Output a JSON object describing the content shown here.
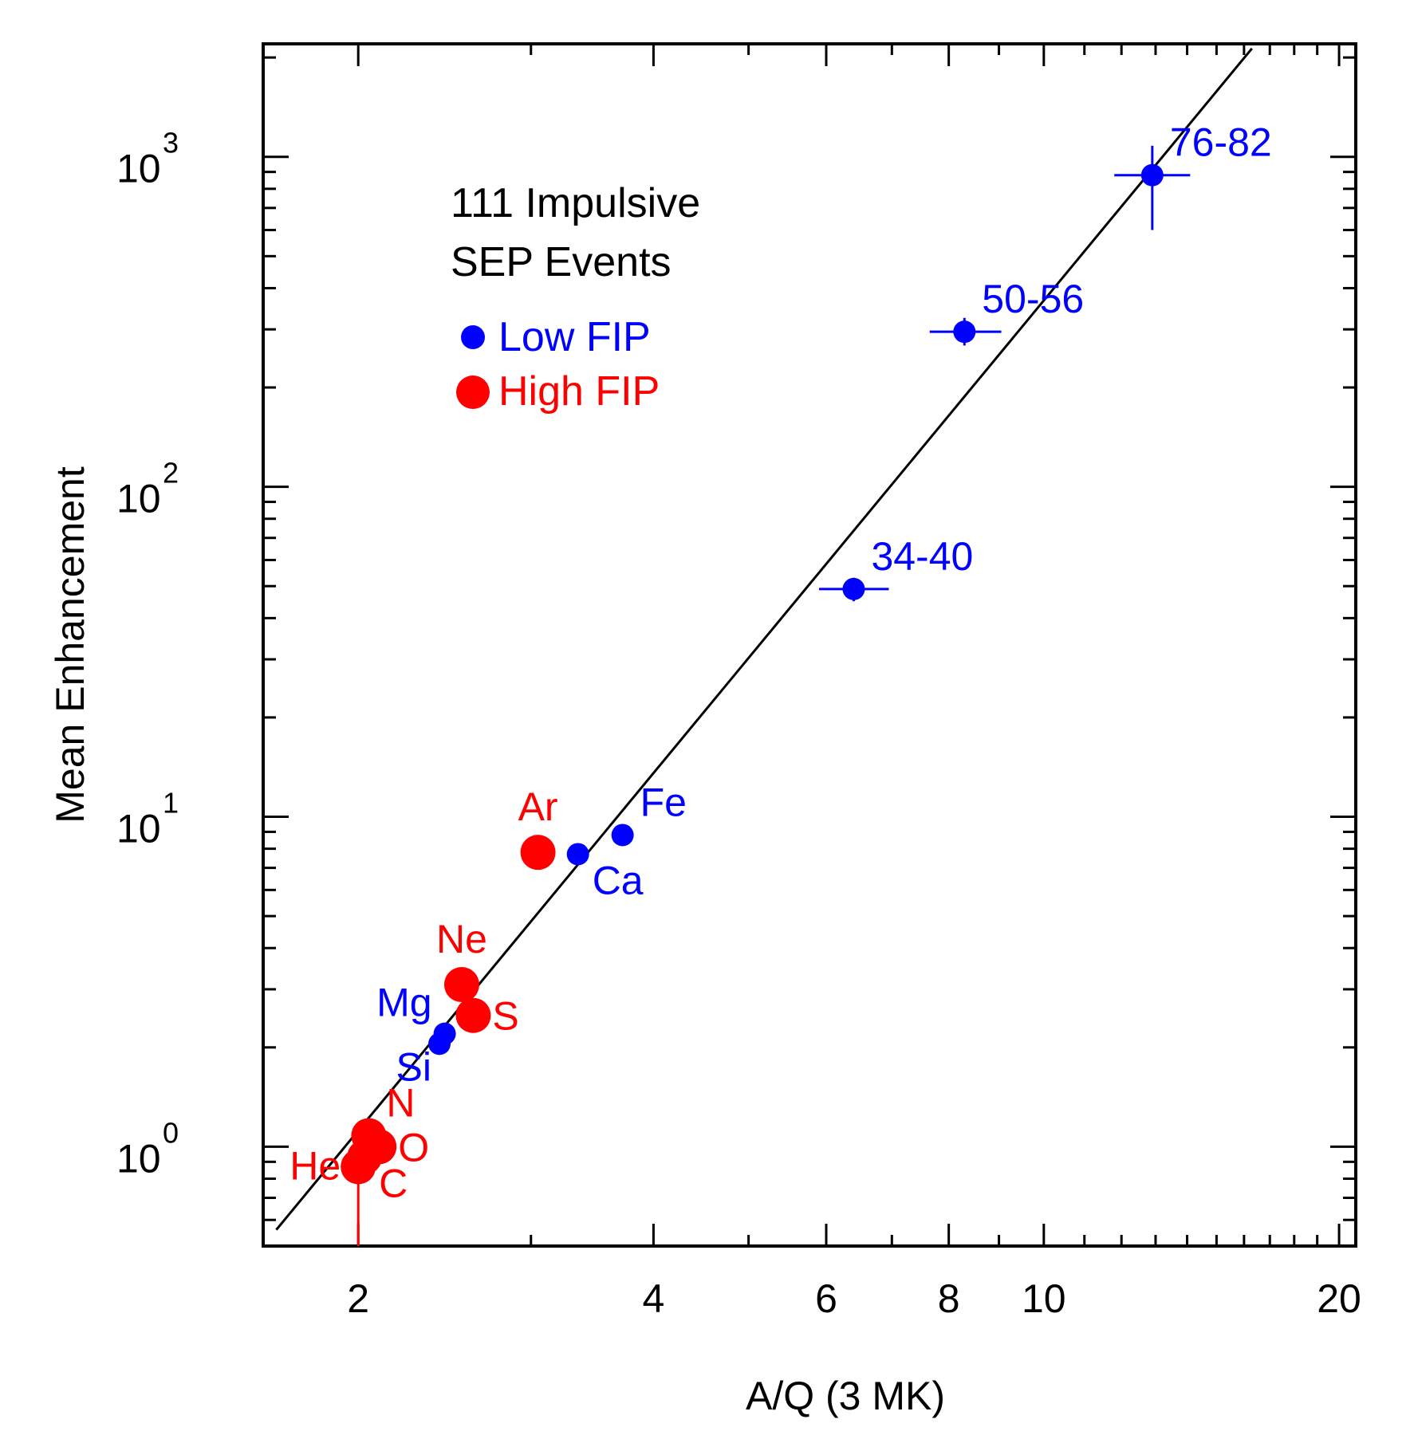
{
  "chart_data": {
    "type": "scatter",
    "xscale": "log",
    "yscale": "log",
    "xlim": [
      1.6,
      20.8
    ],
    "ylim": [
      0.5,
      2200
    ],
    "xlabel": "A/Q (3 MK)",
    "ylabel": "Mean Enhancement",
    "x_ticks": [
      {
        "value": 2,
        "label": "2"
      },
      {
        "value": 4,
        "label": "4"
      },
      {
        "value": 6,
        "label": "6"
      },
      {
        "value": 8,
        "label": "8"
      },
      {
        "value": 10,
        "label": "10"
      },
      {
        "value": 20,
        "label": "20"
      }
    ],
    "y_ticks": [
      {
        "value": 1,
        "base": "10",
        "exp": "0"
      },
      {
        "value": 10,
        "base": "10",
        "exp": "1"
      },
      {
        "value": 100,
        "base": "10",
        "exp": "2"
      },
      {
        "value": 1000,
        "base": "10",
        "exp": "3"
      }
    ],
    "legend": {
      "title_lines": [
        "111 Impulsive",
        "SEP Events"
      ],
      "entries": [
        {
          "label": "Low FIP",
          "color": "#0000ff",
          "marker": "small-dot"
        },
        {
          "label": "High FIP",
          "color": "#ff0000",
          "marker": "large-dot"
        }
      ]
    },
    "fit_line": {
      "x": [
        1.65,
        16.3
      ],
      "y": [
        0.56,
        2130
      ],
      "color": "#000000"
    },
    "series": [
      {
        "name": "High FIP",
        "color": "#ff0000",
        "points": [
          {
            "label": "He",
            "x": 2.0,
            "y": 0.87,
            "yerr_low": 0.5,
            "yerr_high": 1.0,
            "label_pos": "left"
          },
          {
            "label": "C",
            "x": 2.03,
            "y": 0.93,
            "label_pos": "below-right"
          },
          {
            "label": "N",
            "x": 2.05,
            "y": 1.08,
            "yerr_low": 0.95,
            "yerr_high": 1.2,
            "label_pos": "above-right"
          },
          {
            "label": "O",
            "x": 2.1,
            "y": 1.0,
            "label_pos": "right"
          },
          {
            "label": "Ne",
            "x": 2.55,
            "y": 3.1,
            "label_pos": "above"
          },
          {
            "label": "S",
            "x": 2.62,
            "y": 2.5,
            "label_pos": "right"
          },
          {
            "label": "Ar",
            "x": 3.05,
            "y": 7.8,
            "label_pos": "above"
          }
        ]
      },
      {
        "name": "Low FIP",
        "color": "#0000ff",
        "points": [
          {
            "label": "Mg",
            "x": 2.45,
            "y": 2.2,
            "label_pos": "above-left"
          },
          {
            "label": "Si",
            "x": 2.42,
            "y": 2.05,
            "label_pos": "below-left"
          },
          {
            "label": "Ca",
            "x": 3.35,
            "y": 7.7,
            "label_pos": "below-right"
          },
          {
            "label": "Fe",
            "x": 3.72,
            "y": 8.8,
            "label_pos": "above-right"
          },
          {
            "label": "34-40",
            "x": 6.4,
            "y": 49,
            "xerr_low": 5.9,
            "xerr_high": 6.95,
            "yerr_low": 45,
            "yerr_high": 53,
            "label_pos": "above-right"
          },
          {
            "label": "50-56",
            "x": 8.3,
            "y": 295,
            "xerr_low": 7.65,
            "xerr_high": 9.05,
            "yerr_low": 268,
            "yerr_high": 325,
            "label_pos": "above-right"
          },
          {
            "label": "76-82",
            "x": 12.9,
            "y": 880,
            "xerr_low": 11.8,
            "xerr_high": 14.1,
            "yerr_low": 600,
            "yerr_high": 1080,
            "label_pos": "above-right"
          }
        ]
      }
    ]
  }
}
